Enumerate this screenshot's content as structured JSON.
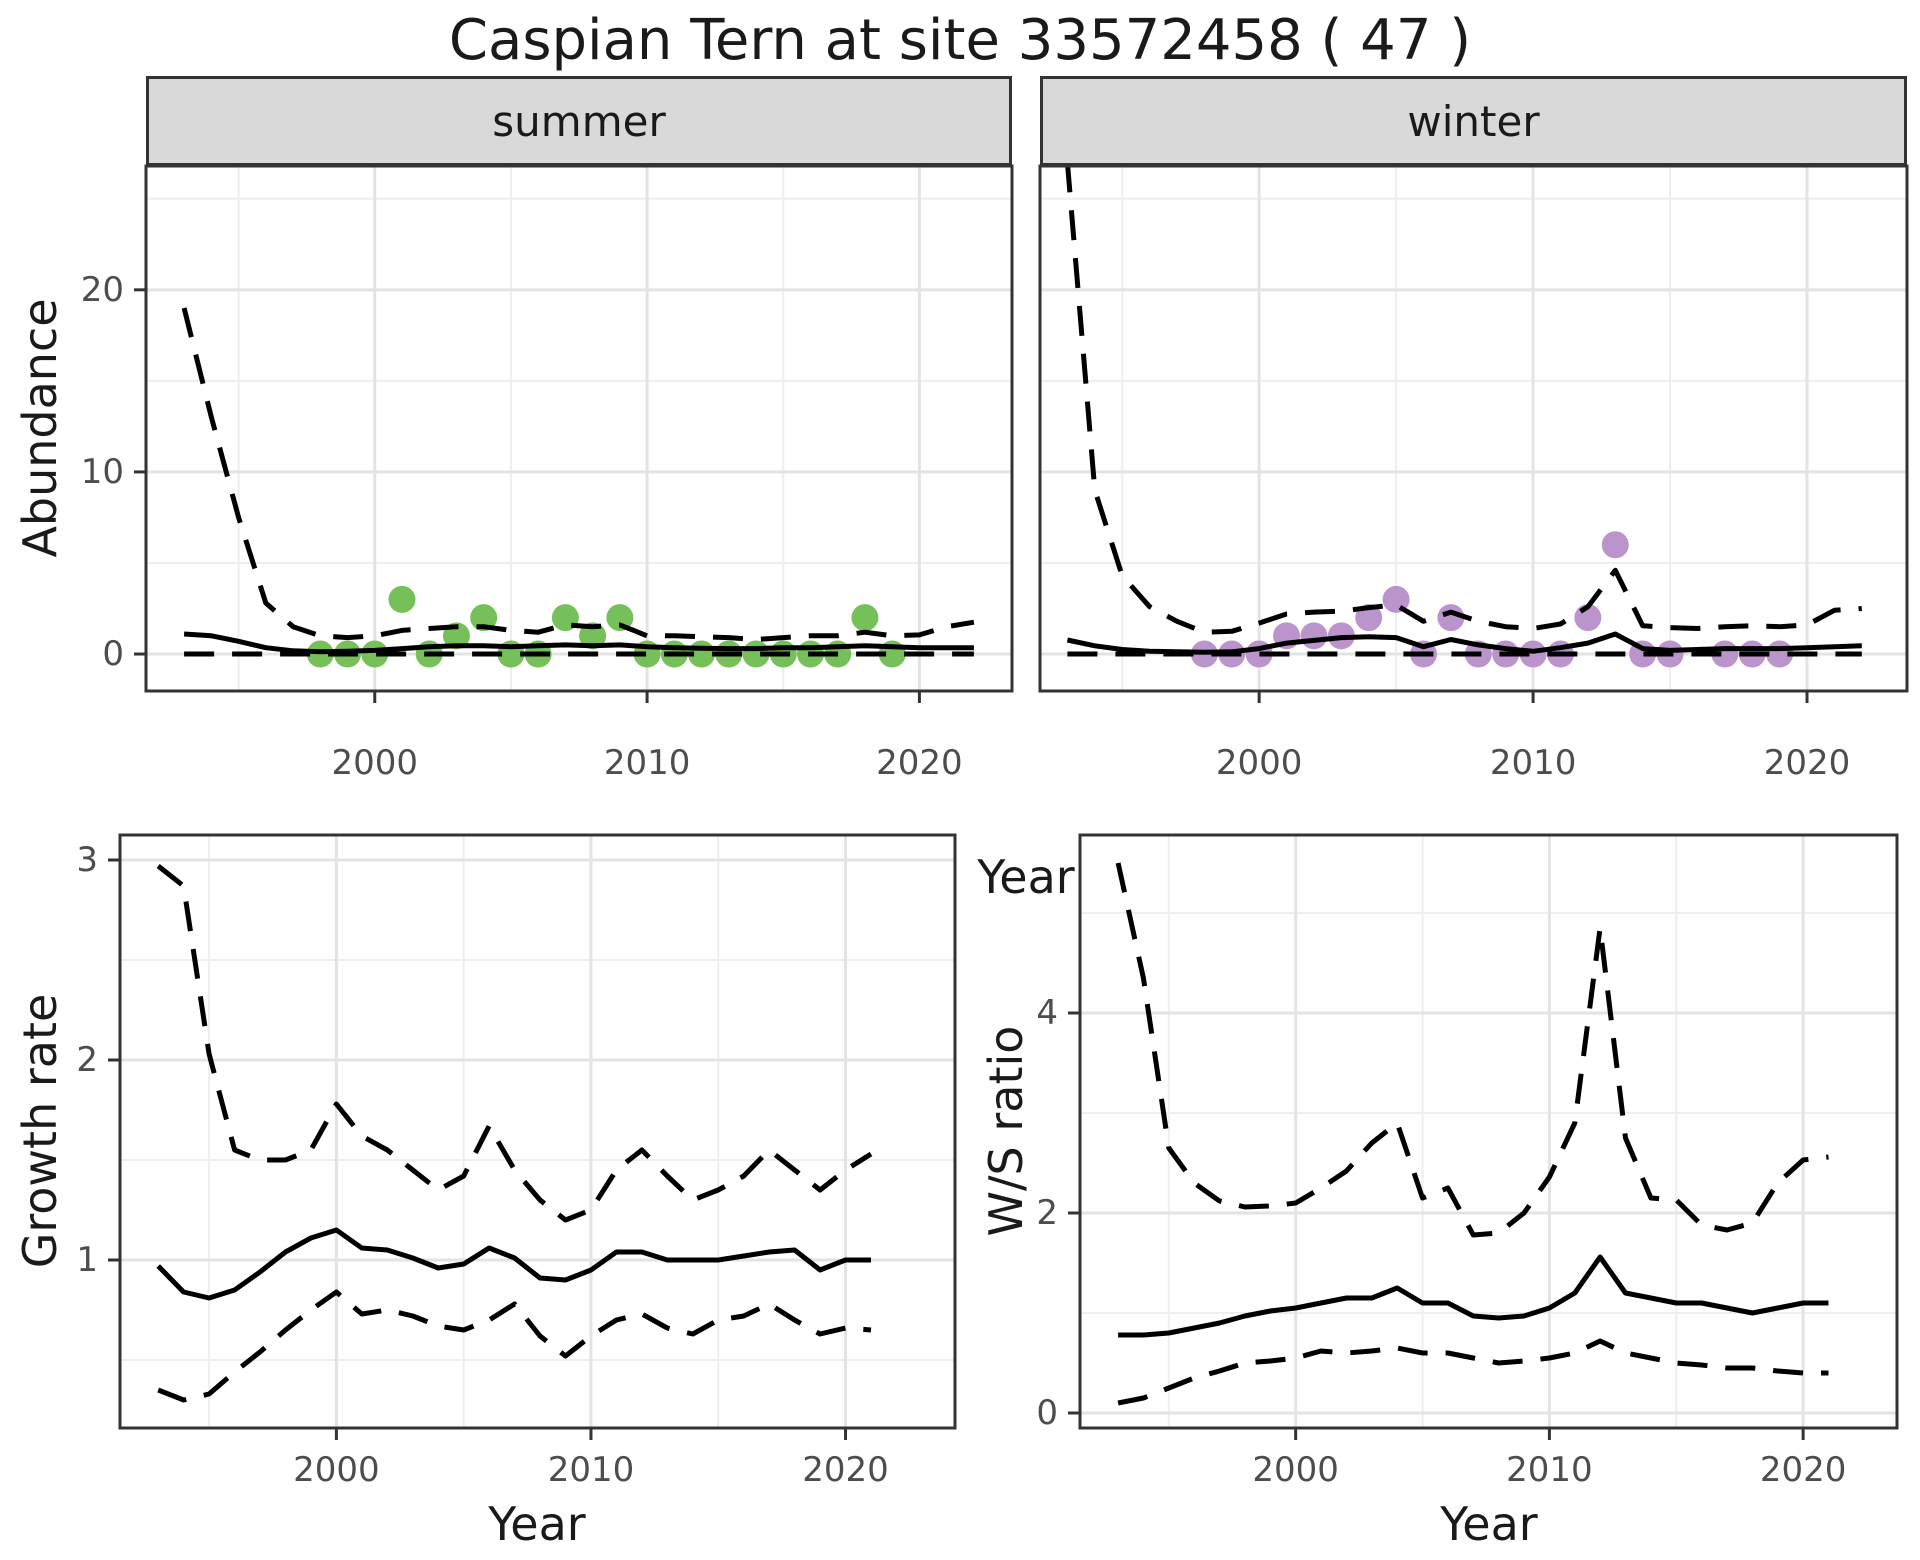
{
  "title": "Caspian Tern at site 33572458 ( 47 )",
  "facets": {
    "summer": "summer",
    "winter": "winter"
  },
  "axis_titles": {
    "y_top": "Abundance",
    "y_bottom_left": "Growth rate",
    "y_bottom_right": "W/S ratio",
    "x": "Year"
  },
  "colors": {
    "summer_points": "#76c05a",
    "winter_points": "#bb94cb",
    "lines": "#000000",
    "strip_background": "#d9d9d9"
  },
  "chart_data": [
    {
      "id": "abundance-summer",
      "type": "line",
      "facet": "summer",
      "ylabel": "Abundance",
      "xlabel": "Year",
      "x_ticks": [
        2000,
        2010,
        2020
      ],
      "x_minor": [
        1995,
        2005,
        2015
      ],
      "y_ticks": [
        0,
        10,
        20
      ],
      "y_minor": [
        5,
        15,
        25
      ],
      "xlim": [
        1991.6,
        2023.4
      ],
      "ylim": [
        -2.03,
        26.8
      ],
      "x": [
        1993,
        1994,
        1995,
        1996,
        1997,
        1998,
        1999,
        2000,
        2001,
        2002,
        2003,
        2004,
        2005,
        2006,
        2007,
        2008,
        2009,
        2010,
        2011,
        2012,
        2013,
        2014,
        2015,
        2016,
        2017,
        2018,
        2019,
        2020,
        2021,
        2022
      ],
      "series": [
        {
          "name": "upper_95ci",
          "style": "dashed",
          "values": [
            19,
            13,
            7.5,
            2.8,
            1.5,
            1.0,
            0.9,
            1.0,
            1.3,
            1.4,
            1.5,
            1.5,
            1.3,
            1.2,
            1.6,
            1.5,
            1.6,
            1.0,
            1.0,
            0.95,
            0.9,
            0.8,
            0.9,
            1.0,
            1.0,
            1.2,
            1.0,
            1.05,
            1.5,
            1.75
          ]
        },
        {
          "name": "estimate",
          "style": "solid",
          "values": [
            1.1,
            1.0,
            0.7,
            0.35,
            0.18,
            0.12,
            0.15,
            0.2,
            0.3,
            0.4,
            0.45,
            0.45,
            0.4,
            0.45,
            0.5,
            0.45,
            0.5,
            0.4,
            0.35,
            0.32,
            0.3,
            0.3,
            0.35,
            0.35,
            0.4,
            0.45,
            0.4,
            0.35,
            0.35,
            0.35
          ]
        },
        {
          "name": "lower_95ci",
          "style": "dashed",
          "values": [
            0,
            0,
            0,
            0,
            0,
            0,
            0,
            0,
            0,
            0,
            0,
            0,
            0,
            0,
            0,
            0,
            0,
            0,
            0,
            0,
            0,
            0,
            0,
            0,
            0,
            0,
            0,
            0,
            0,
            0
          ]
        }
      ],
      "points": {
        "label": "observed summer abundance",
        "color": "#76c05a",
        "years": [
          1998,
          1999,
          2000,
          2001,
          2002,
          2003,
          2004,
          2005,
          2006,
          2007,
          2008,
          2009,
          2010,
          2011,
          2012,
          2013,
          2014,
          2015,
          2016,
          2017,
          2018,
          2019
        ],
        "values": [
          0,
          0,
          0,
          3,
          0,
          1,
          2,
          0,
          0,
          2,
          1,
          2,
          0,
          0,
          0,
          0,
          0,
          0,
          0,
          0,
          2,
          0
        ]
      }
    },
    {
      "id": "abundance-winter",
      "type": "line",
      "facet": "winter",
      "ylabel": "Abundance",
      "xlabel": "Year",
      "x_ticks": [
        2000,
        2010,
        2020
      ],
      "x_minor": [
        1995,
        2005,
        2015
      ],
      "y_ticks": [
        0,
        10,
        20
      ],
      "y_minor": [
        5,
        15,
        25
      ],
      "xlim": [
        1992.0,
        2023.65
      ],
      "ylim": [
        -2.03,
        26.8
      ],
      "x": [
        1993,
        1994,
        1995,
        1996,
        1997,
        1998,
        1999,
        2000,
        2001,
        2002,
        2003,
        2004,
        2005,
        2006,
        2007,
        2008,
        2009,
        2010,
        2011,
        2012,
        2013,
        2014,
        2015,
        2016,
        2017,
        2018,
        2019,
        2020,
        2021,
        2022
      ],
      "series": [
        {
          "name": "upper_95ci",
          "style": "dashed",
          "values": [
            27,
            9,
            4.3,
            2.6,
            1.8,
            1.2,
            1.25,
            1.7,
            2.2,
            2.3,
            2.35,
            2.55,
            2.7,
            1.8,
            2.3,
            1.8,
            1.5,
            1.4,
            1.65,
            2.6,
            4.6,
            1.55,
            1.45,
            1.4,
            1.5,
            1.55,
            1.5,
            1.6,
            2.4,
            2.5
          ]
        },
        {
          "name": "estimate",
          "style": "solid",
          "values": [
            0.77,
            0.45,
            0.25,
            0.15,
            0.12,
            0.1,
            0.12,
            0.3,
            0.6,
            0.75,
            0.9,
            0.95,
            0.9,
            0.4,
            0.8,
            0.5,
            0.3,
            0.15,
            0.35,
            0.6,
            1.1,
            0.3,
            0.2,
            0.25,
            0.3,
            0.3,
            0.3,
            0.35,
            0.4,
            0.45
          ]
        },
        {
          "name": "lower_95ci",
          "style": "dashed",
          "values": [
            0,
            0,
            0,
            0,
            0,
            0,
            0,
            0,
            0,
            0,
            0,
            0,
            0,
            0,
            0,
            0,
            0,
            0,
            0,
            0,
            0,
            0,
            0,
            0,
            0,
            0,
            0,
            0,
            0,
            0
          ]
        }
      ],
      "points": {
        "label": "observed winter abundance",
        "color": "#bb94cb",
        "years": [
          1998,
          1999,
          2000,
          2001,
          2002,
          2003,
          2004,
          2005,
          2006,
          2007,
          2008,
          2009,
          2010,
          2011,
          2012,
          2013,
          2014,
          2015,
          2017,
          2018,
          2019
        ],
        "values": [
          0,
          0,
          0,
          1,
          1,
          1,
          2,
          3,
          0,
          2,
          0,
          0,
          0,
          0,
          2,
          6,
          0,
          0,
          0,
          0,
          0
        ]
      }
    },
    {
      "id": "growth-rate",
      "type": "line",
      "facet": "",
      "ylabel": "Growth rate",
      "xlabel": "Year",
      "x_ticks": [
        2000,
        2010,
        2020
      ],
      "x_minor": [
        1995,
        2005,
        2015
      ],
      "y_ticks": [
        1,
        2,
        3
      ],
      "y_minor": [
        0.5,
        1.5,
        2.5
      ],
      "xlim": [
        1991.5,
        2024.3
      ],
      "ylim": [
        0.16,
        3.125
      ],
      "x": [
        1993,
        1994,
        1995,
        1996,
        1997,
        1998,
        1999,
        2000,
        2001,
        2002,
        2003,
        2004,
        2005,
        2006,
        2007,
        2008,
        2009,
        2010,
        2011,
        2012,
        2013,
        2014,
        2015,
        2016,
        2017,
        2018,
        2019,
        2020,
        2021
      ],
      "series": [
        {
          "name": "upper_95ci",
          "style": "dashed",
          "values": [
            2.97,
            2.87,
            2.03,
            1.55,
            1.5,
            1.5,
            1.55,
            1.78,
            1.62,
            1.55,
            1.45,
            1.35,
            1.42,
            1.67,
            1.45,
            1.3,
            1.2,
            1.25,
            1.45,
            1.55,
            1.42,
            1.3,
            1.35,
            1.42,
            1.55,
            1.45,
            1.35,
            1.45,
            1.53
          ]
        },
        {
          "name": "estimate",
          "style": "solid",
          "values": [
            0.97,
            0.84,
            0.81,
            0.85,
            0.94,
            1.04,
            1.11,
            1.15,
            1.06,
            1.05,
            1.01,
            0.96,
            0.98,
            1.06,
            1.01,
            0.91,
            0.9,
            0.95,
            1.04,
            1.04,
            1.0,
            1.0,
            1.0,
            1.02,
            1.04,
            1.05,
            0.95,
            1.0,
            1.0
          ]
        },
        {
          "name": "lower_95ci",
          "style": "dashed",
          "values": [
            0.35,
            0.3,
            0.33,
            0.44,
            0.54,
            0.65,
            0.75,
            0.84,
            0.73,
            0.75,
            0.72,
            0.67,
            0.65,
            0.7,
            0.78,
            0.62,
            0.52,
            0.62,
            0.7,
            0.73,
            0.66,
            0.63,
            0.7,
            0.72,
            0.78,
            0.7,
            0.63,
            0.66,
            0.65
          ]
        }
      ]
    },
    {
      "id": "ws-ratio",
      "type": "line",
      "facet": "",
      "ylabel": "W/S ratio",
      "xlabel": "Year",
      "x_ticks": [
        2000,
        2010,
        2020
      ],
      "x_minor": [
        1995,
        2005,
        2015
      ],
      "y_ticks": [
        0,
        2,
        4
      ],
      "y_minor": [
        1,
        3,
        5
      ],
      "xlim": [
        1991.5,
        2023.7
      ],
      "ylim": [
        -0.15,
        5.78
      ],
      "x": [
        1993,
        1994,
        1995,
        1996,
        1997,
        1998,
        1999,
        2000,
        2001,
        2002,
        2003,
        2004,
        2005,
        2006,
        2007,
        2008,
        2009,
        2010,
        2011,
        2012,
        2013,
        2014,
        2015,
        2016,
        2017,
        2018,
        2019,
        2020,
        2021
      ],
      "series": [
        {
          "name": "upper_95ci",
          "style": "dashed",
          "values": [
            5.5,
            4.35,
            2.65,
            2.3,
            2.12,
            2.06,
            2.07,
            2.1,
            2.25,
            2.42,
            2.7,
            2.9,
            2.15,
            2.25,
            1.78,
            1.8,
            2.0,
            2.36,
            2.9,
            4.85,
            2.75,
            2.15,
            2.13,
            1.88,
            1.83,
            1.9,
            2.3,
            2.53,
            2.56
          ]
        },
        {
          "name": "estimate",
          "style": "solid",
          "values": [
            0.78,
            0.78,
            0.8,
            0.85,
            0.9,
            0.97,
            1.02,
            1.05,
            1.1,
            1.15,
            1.15,
            1.25,
            1.1,
            1.1,
            0.97,
            0.95,
            0.97,
            1.05,
            1.2,
            1.56,
            1.2,
            1.15,
            1.1,
            1.1,
            1.05,
            1.0,
            1.05,
            1.1,
            1.1
          ]
        },
        {
          "name": "lower_95ci",
          "style": "dashed",
          "values": [
            0.1,
            0.15,
            0.25,
            0.35,
            0.42,
            0.5,
            0.52,
            0.55,
            0.62,
            0.6,
            0.62,
            0.65,
            0.6,
            0.6,
            0.55,
            0.5,
            0.52,
            0.55,
            0.6,
            0.72,
            0.6,
            0.55,
            0.5,
            0.48,
            0.45,
            0.45,
            0.42,
            0.4,
            0.4
          ]
        }
      ]
    }
  ]
}
